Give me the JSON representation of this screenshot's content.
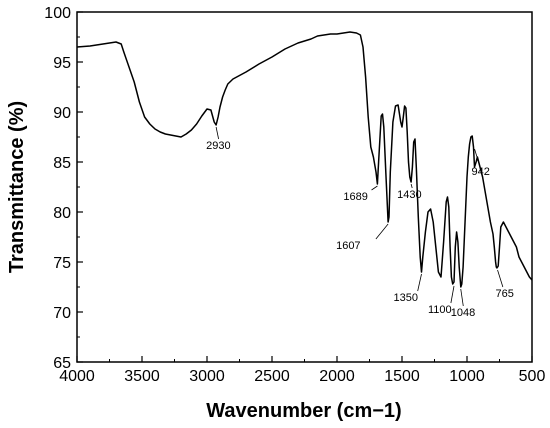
{
  "chart_data": {
    "type": "line",
    "title": "",
    "xlabel": "Wavenumber (cm−1)",
    "ylabel": "Transmittance (%)",
    "xlim": [
      4000,
      500
    ],
    "ylim": [
      65,
      100
    ],
    "x_reversed": true,
    "grid": false,
    "legend": "none",
    "line_color": "#000000",
    "x_ticks": [
      "4000",
      "3500",
      "3000",
      "2500",
      "2000",
      "1500",
      "1000",
      "500"
    ],
    "y_ticks": [
      "65",
      "70",
      "75",
      "80",
      "85",
      "90",
      "95",
      "100"
    ],
    "series": [
      {
        "name": "",
        "x": [
          4000,
          3900,
          3800,
          3700,
          3660,
          3640,
          3600,
          3560,
          3520,
          3480,
          3440,
          3400,
          3360,
          3320,
          3280,
          3240,
          3200,
          3160,
          3120,
          3080,
          3040,
          3000,
          2970,
          2945,
          2930,
          2915,
          2900,
          2880,
          2860,
          2840,
          2800,
          2700,
          2600,
          2500,
          2400,
          2300,
          2200,
          2150,
          2100,
          2050,
          2000,
          1950,
          1900,
          1850,
          1820,
          1800,
          1780,
          1760,
          1740,
          1720,
          1700,
          1689,
          1680,
          1660,
          1650,
          1640,
          1625,
          1607,
          1600,
          1590,
          1570,
          1550,
          1530,
          1510,
          1500,
          1490,
          1480,
          1470,
          1460,
          1450,
          1440,
          1430,
          1420,
          1410,
          1400,
          1390,
          1375,
          1360,
          1350,
          1340,
          1320,
          1300,
          1280,
          1260,
          1240,
          1220,
          1200,
          1180,
          1160,
          1150,
          1140,
          1130,
          1120,
          1110,
          1100,
          1090,
          1080,
          1070,
          1060,
          1048,
          1040,
          1030,
          1020,
          1010,
          1000,
          990,
          980,
          970,
          960,
          950,
          942,
          930,
          920,
          910,
          900,
          880,
          860,
          840,
          820,
          800,
          790,
          780,
          775,
          770,
          765,
          760,
          750,
          740,
          720,
          700,
          680,
          660,
          640,
          620,
          600,
          580,
          560,
          540,
          520,
          500
        ],
        "y": [
          96.5,
          96.6,
          96.8,
          97.0,
          96.8,
          96.0,
          94.5,
          93.0,
          91.0,
          89.5,
          88.8,
          88.3,
          88.0,
          87.8,
          87.7,
          87.6,
          87.5,
          87.8,
          88.2,
          88.8,
          89.6,
          90.3,
          90.2,
          89.0,
          88.7,
          89.5,
          90.5,
          91.5,
          92.2,
          92.8,
          93.3,
          94.0,
          94.8,
          95.5,
          96.3,
          96.9,
          97.3,
          97.6,
          97.7,
          97.8,
          97.8,
          97.9,
          98.0,
          97.9,
          97.7,
          96.5,
          93.5,
          89.5,
          86.5,
          85.5,
          84.0,
          82.8,
          85.0,
          89.6,
          89.8,
          88.5,
          84.0,
          79.0,
          79.5,
          84.0,
          89.0,
          90.6,
          90.7,
          89.0,
          88.5,
          89.5,
          90.6,
          90.4,
          88.0,
          85.0,
          83.5,
          83.0,
          84.5,
          87.0,
          87.3,
          84.5,
          79.5,
          75.5,
          74.0,
          75.5,
          78.0,
          80.0,
          80.3,
          79.0,
          76.5,
          74.0,
          73.5,
          77.0,
          81.0,
          81.5,
          80.5,
          76.5,
          73.5,
          72.8,
          73.0,
          76.5,
          78.0,
          77.0,
          74.5,
          72.5,
          72.8,
          74.5,
          77.5,
          80.5,
          83.5,
          85.5,
          86.8,
          87.5,
          87.6,
          86.5,
          84.5,
          85.0,
          85.5,
          85.0,
          84.5,
          83.5,
          82.0,
          80.5,
          79.0,
          77.8,
          76.5,
          75.0,
          74.5,
          74.4,
          74.5,
          74.6,
          76.5,
          78.5,
          79.0,
          78.5,
          78.0,
          77.5,
          77.0,
          76.5,
          75.5,
          75.0,
          74.5,
          74.0,
          73.5,
          73.2
        ]
      }
    ],
    "annotations": [
      {
        "label": "2930",
        "x": 2930,
        "y": 88.7
      },
      {
        "label": "1689",
        "x": 1689,
        "y": 82.8
      },
      {
        "label": "1607",
        "x": 1607,
        "y": 79.0
      },
      {
        "label": "1430",
        "x": 1430,
        "y": 83.0
      },
      {
        "label": "1350",
        "x": 1350,
        "y": 74.0
      },
      {
        "label": "1100",
        "x": 1100,
        "y": 72.8
      },
      {
        "label": "1048",
        "x": 1048,
        "y": 72.5
      },
      {
        "label": "942",
        "x": 942,
        "y": 86.5
      },
      {
        "label": "765",
        "x": 765,
        "y": 74.4
      }
    ]
  }
}
